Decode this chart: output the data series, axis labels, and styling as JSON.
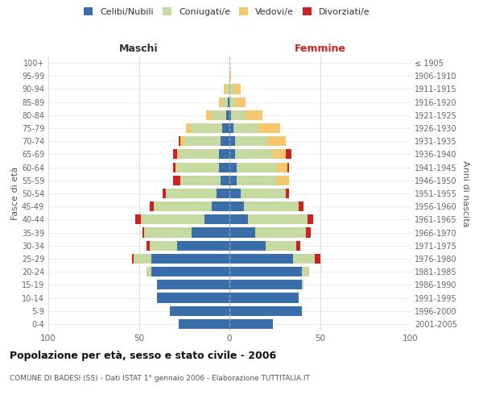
{
  "age_groups": [
    "0-4",
    "5-9",
    "10-14",
    "15-19",
    "20-24",
    "25-29",
    "30-34",
    "35-39",
    "40-44",
    "45-49",
    "50-54",
    "55-59",
    "60-64",
    "65-69",
    "70-74",
    "75-79",
    "80-84",
    "85-89",
    "90-94",
    "95-99",
    "100+"
  ],
  "birth_years": [
    "2001-2005",
    "1996-2000",
    "1991-1995",
    "1986-1990",
    "1981-1985",
    "1976-1980",
    "1971-1975",
    "1966-1970",
    "1961-1965",
    "1956-1960",
    "1951-1955",
    "1946-1950",
    "1941-1945",
    "1936-1940",
    "1931-1935",
    "1926-1930",
    "1921-1925",
    "1916-1920",
    "1911-1915",
    "1906-1910",
    "≤ 1905"
  ],
  "males": {
    "celibi": [
      28,
      33,
      40,
      40,
      43,
      43,
      29,
      21,
      14,
      10,
      7,
      5,
      6,
      6,
      5,
      4,
      2,
      1,
      0,
      0,
      0
    ],
    "coniugati": [
      0,
      0,
      0,
      0,
      3,
      10,
      15,
      26,
      35,
      32,
      28,
      22,
      23,
      22,
      20,
      17,
      8,
      3,
      2,
      0,
      0
    ],
    "vedovi": [
      0,
      0,
      0,
      0,
      0,
      0,
      0,
      0,
      0,
      0,
      0,
      0,
      1,
      1,
      2,
      3,
      3,
      2,
      1,
      0,
      0
    ],
    "divorziati": [
      0,
      0,
      0,
      0,
      0,
      1,
      2,
      1,
      3,
      2,
      2,
      4,
      1,
      2,
      1,
      0,
      0,
      0,
      0,
      0,
      0
    ]
  },
  "females": {
    "nubili": [
      24,
      40,
      38,
      40,
      40,
      35,
      20,
      14,
      10,
      8,
      6,
      4,
      4,
      3,
      3,
      2,
      1,
      0,
      0,
      0,
      0
    ],
    "coniugate": [
      0,
      0,
      0,
      1,
      4,
      12,
      17,
      28,
      33,
      30,
      25,
      22,
      22,
      21,
      18,
      14,
      8,
      3,
      2,
      0,
      0
    ],
    "vedove": [
      0,
      0,
      0,
      0,
      0,
      0,
      0,
      0,
      0,
      0,
      0,
      7,
      6,
      7,
      10,
      12,
      9,
      6,
      4,
      1,
      0
    ],
    "divorziate": [
      0,
      0,
      0,
      0,
      0,
      3,
      2,
      3,
      3,
      3,
      2,
      0,
      1,
      3,
      0,
      0,
      0,
      0,
      0,
      0,
      0
    ]
  },
  "color_celibi": "#3a6eaa",
  "color_coniugati": "#c5d9a0",
  "color_vedovi": "#f5c86e",
  "color_divorziati": "#cc2222",
  "title": "Popolazione per età, sesso e stato civile - 2006",
  "subtitle": "COMUNE DI BADESI (SS) - Dati ISTAT 1° gennaio 2006 - Elaborazione TUTTITALIA.IT",
  "xlabel_left": "Maschi",
  "xlabel_right": "Femmine",
  "ylabel_left": "Fasce di età",
  "ylabel_right": "Anni di nascita",
  "xlim": 100,
  "background_color": "#ffffff"
}
